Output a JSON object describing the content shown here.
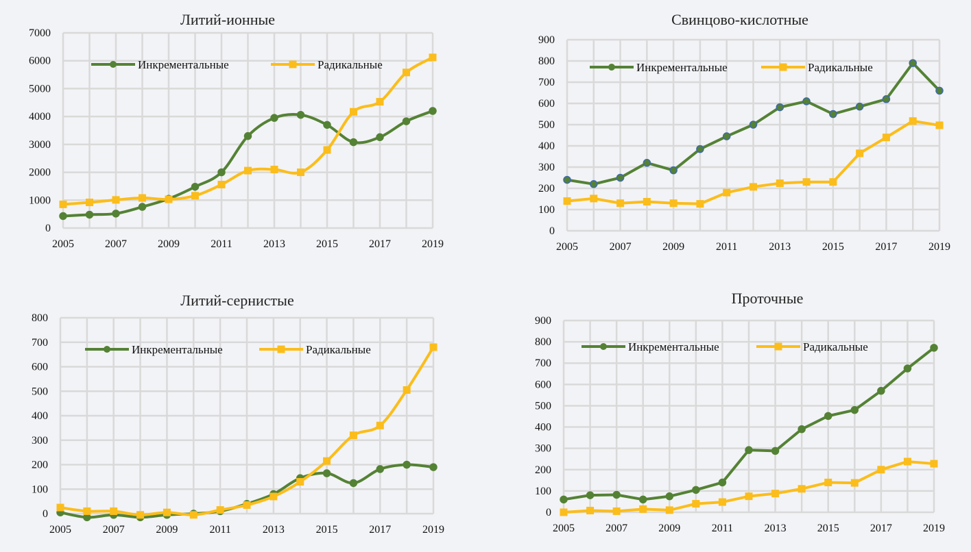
{
  "colors": {
    "incremental": "#548235",
    "radical": "#fbbd1b",
    "marker_edge_alt": "#3e6aa8",
    "grid": "#d9d9d9"
  },
  "chart_data": [
    {
      "type": "line",
      "title": "Литий-ионные",
      "x": [
        2005,
        2006,
        2007,
        2008,
        2009,
        2010,
        2011,
        2012,
        2013,
        2014,
        2015,
        2016,
        2017,
        2018,
        2019
      ],
      "xticks": [
        "2005",
        "2007",
        "2009",
        "2011",
        "2013",
        "2015",
        "2017",
        "2019"
      ],
      "xlim": [
        2005,
        2019
      ],
      "ylim": [
        0,
        7000
      ],
      "yticks": [
        "0",
        "1000",
        "2000",
        "3000",
        "4000",
        "5000",
        "6000",
        "7000"
      ],
      "smooth": true,
      "legend": "top-left",
      "series": [
        {
          "name": "Инкрементальные",
          "marker": "circle",
          "values": [
            430,
            480,
            520,
            760,
            1050,
            1480,
            2000,
            3300,
            3950,
            4060,
            3700,
            3080,
            3260,
            3830,
            4200
          ]
        },
        {
          "name": "Радикальные",
          "marker": "square",
          "values": [
            850,
            920,
            1010,
            1080,
            1030,
            1160,
            1560,
            2060,
            2100,
            2000,
            2800,
            4170,
            4530,
            5580,
            6120
          ]
        }
      ]
    },
    {
      "type": "line",
      "title": "Свинцово-кислотные",
      "x": [
        2005,
        2006,
        2007,
        2008,
        2009,
        2010,
        2011,
        2012,
        2013,
        2014,
        2015,
        2016,
        2017,
        2018,
        2019
      ],
      "xticks": [
        "2005",
        "2007",
        "2009",
        "2011",
        "2013",
        "2015",
        "2017",
        "2019"
      ],
      "xlim": [
        2005,
        2019
      ],
      "ylim": [
        0,
        900
      ],
      "yticks": [
        "0",
        "100",
        "200",
        "300",
        "400",
        "500",
        "600",
        "700",
        "800",
        "900"
      ],
      "smooth": false,
      "legend": "top-left",
      "series": [
        {
          "name": "Инкрементальные",
          "marker": "circle",
          "values": [
            240,
            220,
            250,
            320,
            285,
            385,
            445,
            500,
            582,
            610,
            550,
            585,
            620,
            790,
            660
          ]
        },
        {
          "name": "Радикальные",
          "marker": "square",
          "values": [
            140,
            152,
            130,
            137,
            130,
            127,
            180,
            207,
            224,
            230,
            230,
            365,
            440,
            517,
            497
          ]
        }
      ]
    },
    {
      "type": "line",
      "title": "Литий-сернистые",
      "x": [
        2005,
        2006,
        2007,
        2008,
        2009,
        2010,
        2011,
        2012,
        2013,
        2014,
        2015,
        2016,
        2017,
        2018,
        2019
      ],
      "xticks": [
        "2005",
        "2007",
        "2009",
        "2011",
        "2013",
        "2015",
        "2017",
        "2019"
      ],
      "xlim": [
        2005,
        2019
      ],
      "ylim": [
        0,
        800
      ],
      "yticks": [
        "0",
        "100",
        "200",
        "300",
        "400",
        "500",
        "600",
        "700",
        "800"
      ],
      "smooth": true,
      "legend": "top-left",
      "series": [
        {
          "name": "Инкрементальные",
          "marker": "circle",
          "values": [
            5,
            -15,
            -5,
            -15,
            -5,
            0,
            10,
            40,
            80,
            145,
            165,
            125,
            182,
            200,
            190
          ]
        },
        {
          "name": "Радикальные",
          "marker": "square",
          "values": [
            25,
            10,
            10,
            -5,
            5,
            -5,
            15,
            35,
            70,
            130,
            215,
            320,
            360,
            505,
            680
          ]
        }
      ]
    },
    {
      "type": "line",
      "title": "Проточные",
      "x": [
        2005,
        2006,
        2007,
        2008,
        2009,
        2010,
        2011,
        2012,
        2013,
        2014,
        2015,
        2016,
        2017,
        2018,
        2019
      ],
      "xticks": [
        "2005",
        "2007",
        "2009",
        "2011",
        "2013",
        "2015",
        "2017",
        "2019"
      ],
      "xlim": [
        2005,
        2019
      ],
      "ylim": [
        0,
        900
      ],
      "yticks": [
        "0",
        "100",
        "200",
        "300",
        "400",
        "500",
        "600",
        "700",
        "800",
        "900"
      ],
      "smooth": false,
      "legend": "top-left",
      "series": [
        {
          "name": "Инкрементальные",
          "marker": "circle",
          "values": [
            60,
            80,
            82,
            60,
            75,
            105,
            140,
            292,
            288,
            390,
            452,
            480,
            570,
            675,
            772
          ]
        },
        {
          "name": "Радикальные",
          "marker": "square",
          "values": [
            0,
            8,
            5,
            15,
            10,
            40,
            48,
            75,
            88,
            110,
            140,
            138,
            200,
            238,
            228
          ]
        }
      ]
    }
  ]
}
